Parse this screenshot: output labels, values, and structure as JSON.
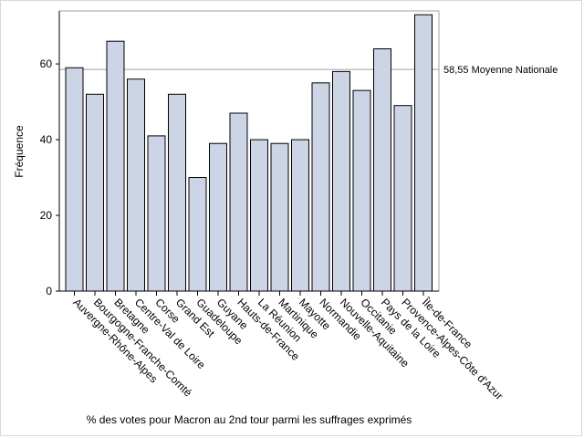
{
  "chart_data": {
    "type": "bar",
    "categories": [
      "Auvergne-Rhône-Alpes",
      "Bourgogne-Franche-Comté",
      "Bretagne",
      "Centre-Val de Loire",
      "Corse",
      "Grand Est",
      "Guadeloupe",
      "Guyane",
      "Hauts-de-France",
      "La Réunion",
      "Martinique",
      "Mayotte",
      "Normandie",
      "Nouvelle-Aquitaine",
      "Occitanie",
      "Pays de la Loire",
      "Provence-Alpes-Côte d'Azur",
      "Île-de-France"
    ],
    "values": [
      59,
      52,
      66,
      56,
      41,
      52,
      30,
      39,
      47,
      40,
      39,
      40,
      55,
      58,
      53,
      64,
      49,
      73
    ],
    "xlabel": "% des votes pour Macron au 2nd tour parmi les suffrages exprimés",
    "ylabel": "Fréquence",
    "ylim": [
      0,
      74
    ],
    "yticks": [
      0,
      20,
      40,
      60
    ],
    "reference_line": {
      "value": 58.55,
      "label": "58,55 Moyenne Nationale"
    },
    "colors": {
      "bar_fill": "#cbd5e6",
      "bar_stroke": "#000000",
      "axis": "#000000",
      "reference": "#a0a0a0",
      "frame": "#a0a0a0"
    },
    "grid": false,
    "legend": "none"
  }
}
